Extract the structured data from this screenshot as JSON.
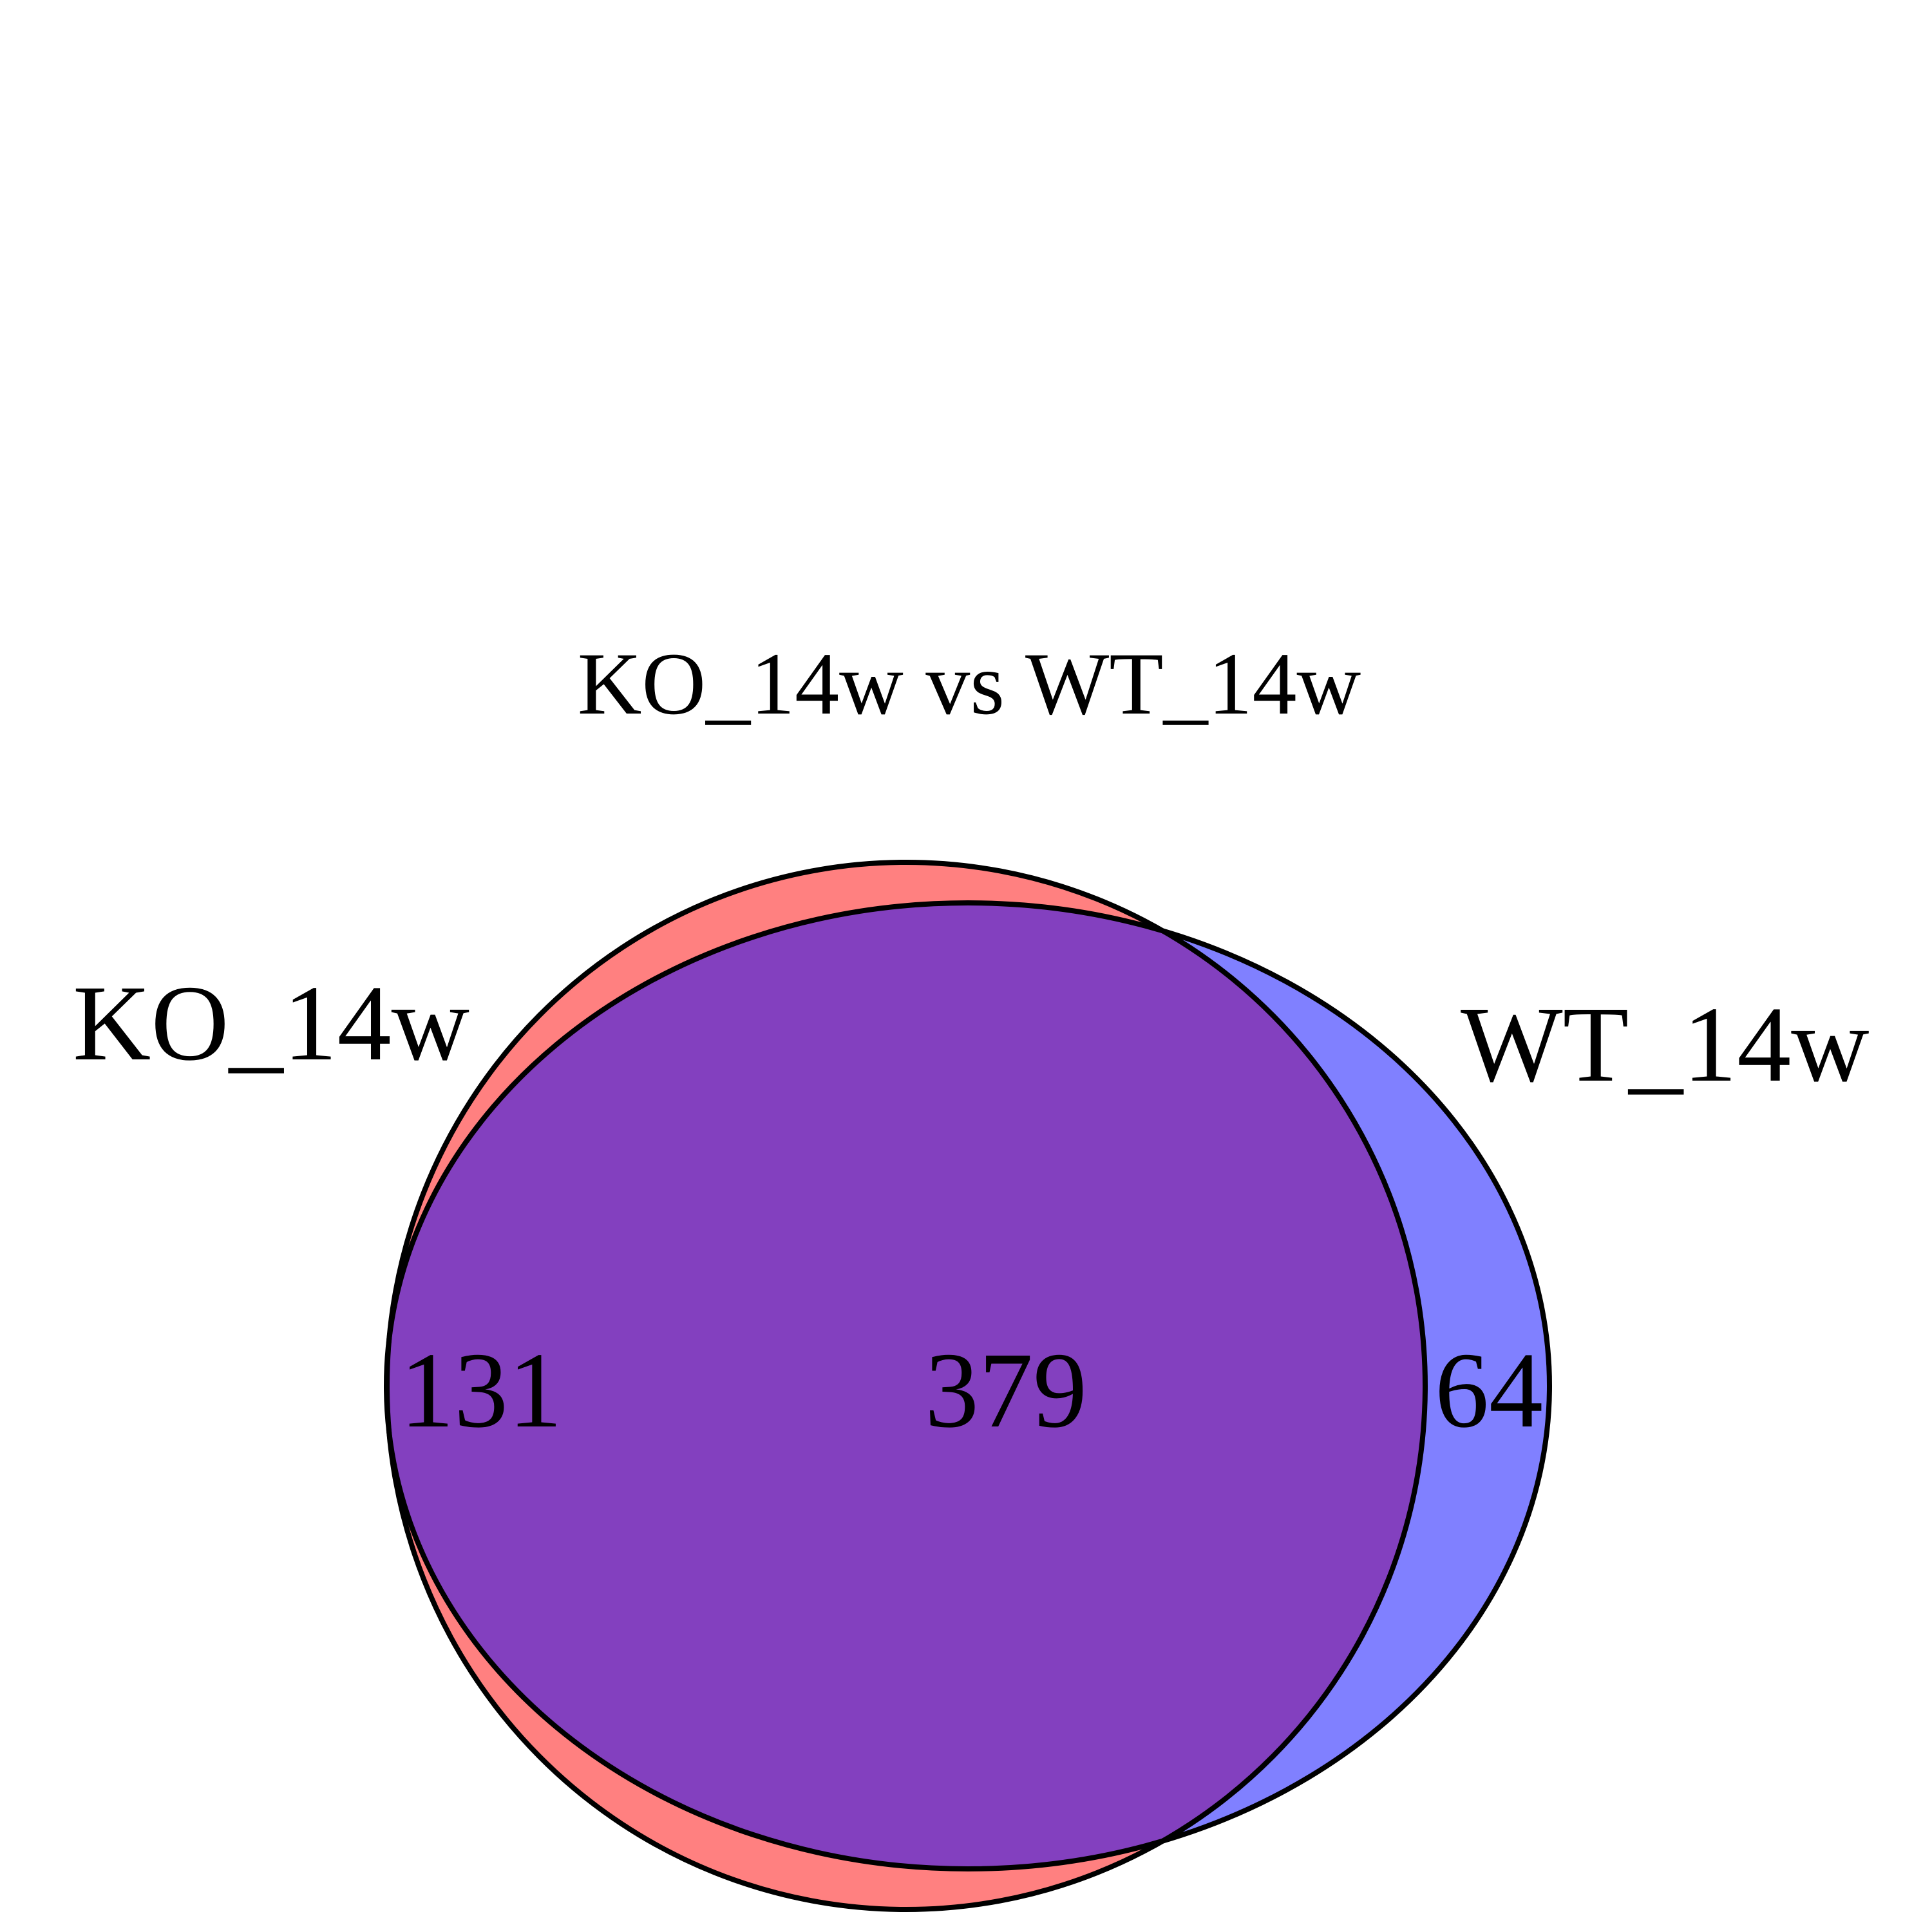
{
  "title": "KO_14w vs WT_14w",
  "sets": [
    {
      "name": "KO_14w",
      "color": "#ff8080"
    },
    {
      "name": "WT_14w",
      "color": "#8080ff"
    }
  ],
  "counts": {
    "ko_only": "131",
    "overlap": "379",
    "wt_only": "64"
  },
  "overlap_color": "#8340bf",
  "outline_color": "#000000"
}
